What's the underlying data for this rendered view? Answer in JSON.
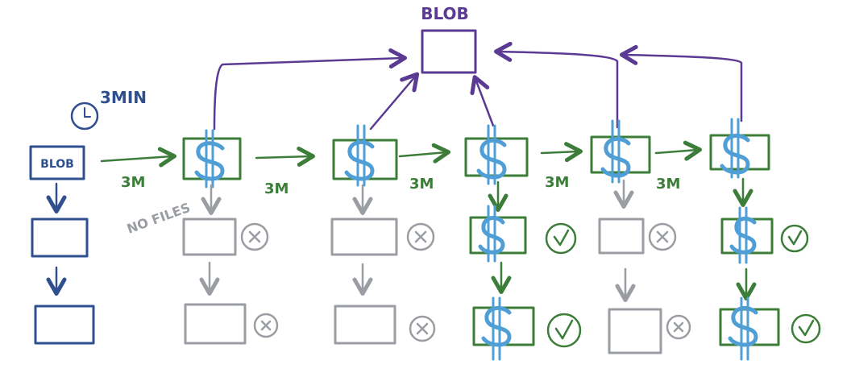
{
  "colors": {
    "blue": "#2f4f8f",
    "green": "#3d7d3a",
    "grey": "#9a9ea3",
    "purple": "#5a3a92",
    "dollar": "#4f9fd6"
  },
  "labels": {
    "top_blob": "BLOB",
    "left_blob": "BLOB",
    "timer": "3MIN",
    "no_files": "NO FILES",
    "interval": "3M"
  },
  "icons": {
    "clock": "clock-icon",
    "dollar": "dollar-icon",
    "check": "check-circle-icon",
    "cross": "cross-circle-icon"
  },
  "columns": [
    {
      "id": "col-1",
      "state": "idle"
    },
    {
      "id": "col-2",
      "state": "idle"
    },
    {
      "id": "col-3",
      "state": "active"
    },
    {
      "id": "col-4",
      "state": "idle"
    },
    {
      "id": "col-5",
      "state": "active"
    }
  ]
}
